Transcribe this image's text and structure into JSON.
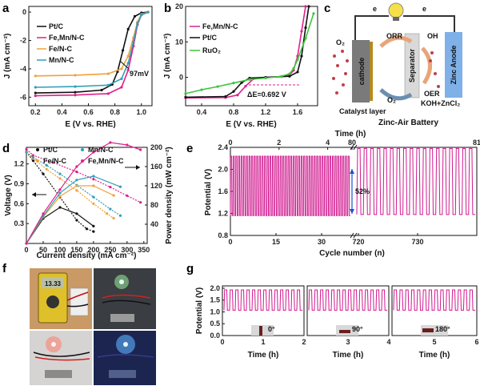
{
  "panel_labels": [
    "a",
    "b",
    "c",
    "d",
    "e",
    "f",
    "g"
  ],
  "colors": {
    "pt_c": "#111111",
    "fe_mn_n_c": "#e0218a",
    "fe_n_c": "#f0a23a",
    "mn_n_c": "#2f9fb8",
    "ruo2": "#3ec43e",
    "battery_cycle": "#d0198f",
    "arrow_blue": "#1a4fd6"
  },
  "chart_data": [
    {
      "id": "a",
      "type": "line",
      "xlabel": "E (V vs. RHE)",
      "ylabel": "J (mA cm⁻²)",
      "xlim": [
        0.15,
        1.08
      ],
      "ylim": [
        -6.6,
        0.4
      ],
      "xticks": [
        0.2,
        0.4,
        0.6,
        0.8,
        1.0
      ],
      "yticks": [
        0,
        -2,
        -4,
        -6
      ],
      "annotation": "97mV",
      "series": [
        {
          "name": "Pt/C",
          "x": [
            0.2,
            0.5,
            0.7,
            0.78,
            0.82,
            0.86,
            0.9,
            0.95,
            1.0,
            1.05
          ],
          "y": [
            -5.7,
            -5.65,
            -5.5,
            -5.1,
            -4.2,
            -2.7,
            -1.2,
            -0.3,
            -0.05,
            0.0
          ]
        },
        {
          "name": "Fe,Mn/N-C",
          "x": [
            0.2,
            0.5,
            0.75,
            0.85,
            0.9,
            0.94,
            0.97,
            1.0,
            1.05
          ],
          "y": [
            -5.9,
            -5.85,
            -5.75,
            -5.3,
            -4.1,
            -2.4,
            -0.9,
            -0.2,
            0.0
          ]
        },
        {
          "name": "Fe/N-C",
          "x": [
            0.2,
            0.5,
            0.75,
            0.85,
            0.9,
            0.94,
            0.97,
            1.0,
            1.05
          ],
          "y": [
            -4.5,
            -4.45,
            -4.35,
            -4.0,
            -3.1,
            -1.8,
            -0.7,
            -0.15,
            0.0
          ]
        },
        {
          "name": "Mn/N-C",
          "x": [
            0.2,
            0.5,
            0.75,
            0.85,
            0.9,
            0.94,
            0.97,
            1.0,
            1.05
          ],
          "y": [
            -5.3,
            -5.25,
            -5.15,
            -4.7,
            -3.6,
            -2.1,
            -0.8,
            -0.2,
            0.0
          ]
        }
      ]
    },
    {
      "id": "b",
      "type": "line",
      "xlabel": "E (V vs. RHE)",
      "ylabel": "J (mA cm⁻²)",
      "xlim": [
        0.2,
        1.85
      ],
      "ylim": [
        -8,
        20
      ],
      "xticks": [
        0.4,
        0.8,
        1.2,
        1.6
      ],
      "yticks": [
        0,
        10,
        20
      ],
      "annotation": "ΔE=0.692 V",
      "series": [
        {
          "name": "Fe,Mn/N-C",
          "x": [
            0.2,
            0.7,
            0.85,
            0.95,
            1.05,
            1.2,
            1.4,
            1.5,
            1.55,
            1.6,
            1.65,
            1.7
          ],
          "y": [
            -5.8,
            -5.7,
            -5.0,
            -2.5,
            -0.4,
            0.0,
            0.2,
            0.6,
            2.0,
            6.0,
            13.0,
            20.0
          ]
        },
        {
          "name": "Pt/C",
          "x": [
            0.2,
            0.7,
            0.8,
            0.9,
            1.0,
            1.2,
            1.5,
            1.6,
            1.65,
            1.7,
            1.74
          ],
          "y": [
            -5.6,
            -5.4,
            -4.0,
            -1.5,
            -0.2,
            0.0,
            0.3,
            1.5,
            6.0,
            14.0,
            20.0
          ]
        },
        {
          "name": "RuO₂",
          "x": [
            0.2,
            0.4,
            0.6,
            0.8,
            1.0,
            1.2,
            1.4,
            1.5,
            1.55,
            1.6,
            1.7,
            1.8
          ],
          "y": [
            -4.6,
            -3.5,
            -2.6,
            -1.6,
            -0.6,
            -0.2,
            0.3,
            1.0,
            2.5,
            5.0,
            11.0,
            18.0
          ]
        }
      ]
    },
    {
      "id": "d",
      "type": "line",
      "xlabel": "Current density (mA cm⁻²)",
      "ylabel": "Voltage (V)",
      "ylabel2": "Power density (mW cm⁻²)",
      "xlim": [
        0,
        360
      ],
      "ylim": [
        0.0,
        1.45
      ],
      "y2lim": [
        0,
        200
      ],
      "xticks": [
        0,
        50,
        100,
        150,
        200,
        250,
        300,
        350
      ],
      "yticks": [
        0.3,
        0.6,
        0.9,
        1.2
      ],
      "y2ticks": [
        40,
        80,
        120,
        160,
        200
      ],
      "series": [
        {
          "name": "Pt/C",
          "axis": "voltage",
          "x": [
            0,
            20,
            50,
            100,
            150,
            180,
            200
          ],
          "y": [
            1.38,
            1.25,
            1.05,
            0.7,
            0.35,
            0.22,
            0.18
          ]
        },
        {
          "name": "Fe/N-C",
          "axis": "voltage",
          "x": [
            0,
            20,
            60,
            100,
            150,
            200,
            240,
            260
          ],
          "y": [
            1.38,
            1.28,
            1.12,
            0.98,
            0.8,
            0.6,
            0.45,
            0.38
          ]
        },
        {
          "name": "Mn/N-C",
          "axis": "voltage",
          "x": [
            0,
            20,
            60,
            100,
            150,
            200,
            250,
            280
          ],
          "y": [
            1.38,
            1.3,
            1.18,
            1.05,
            0.88,
            0.7,
            0.52,
            0.42
          ]
        },
        {
          "name": "Fe,Mn/N-C",
          "axis": "voltage",
          "x": [
            0,
            20,
            80,
            150,
            200,
            250,
            300,
            340
          ],
          "y": [
            1.42,
            1.33,
            1.22,
            1.08,
            0.97,
            0.85,
            0.72,
            0.62
          ]
        },
        {
          "name": "Pt/C",
          "axis": "power",
          "x": [
            0,
            50,
            100,
            150,
            200
          ],
          "y": [
            0,
            52,
            75,
            62,
            36
          ]
        },
        {
          "name": "Fe/N-C",
          "axis": "power",
          "x": [
            0,
            50,
            100,
            150,
            200,
            260
          ],
          "y": [
            0,
            55,
            98,
            120,
            120,
            100
          ]
        },
        {
          "name": "Mn/N-C",
          "axis": "power",
          "x": [
            0,
            50,
            100,
            150,
            200,
            280
          ],
          "y": [
            0,
            57,
            105,
            132,
            140,
            118
          ]
        },
        {
          "name": "Fe,Mn/N-C",
          "axis": "power",
          "x": [
            0,
            50,
            100,
            150,
            200,
            250,
            300,
            340
          ],
          "y": [
            0,
            62,
            112,
            160,
            190,
            210,
            205,
            195
          ]
        }
      ]
    },
    {
      "id": "e",
      "type": "line",
      "xlabel": "Cycle number (n)",
      "ylabel": "Potential (V)",
      "top_xlabel": "Time (h)",
      "ylim": [
        0.8,
        2.4
      ],
      "yticks": [
        0.8,
        1.2,
        1.6,
        2.0,
        2.4
      ],
      "bottom_ticks_left": [
        0,
        15,
        30
      ],
      "bottom_ticks_right": [
        720,
        730
      ],
      "top_ticks_left": [
        0,
        2,
        4,
        80
      ],
      "top_ticks_right": [
        81
      ],
      "charge_voltage": 2.24,
      "discharge_voltage": 1.16,
      "late_charge_voltage": 2.38,
      "late_discharge_voltage": 1.18,
      "annotation": "52%"
    },
    {
      "id": "g",
      "type": "line",
      "xlabel": "Time (h)",
      "ylabel": "Potential (V)",
      "ylim": [
        0.0,
        2.1
      ],
      "yticks": [
        0.0,
        0.5,
        1.0,
        1.5,
        2.0
      ],
      "subplots": [
        {
          "xlim": [
            0,
            2
          ],
          "xticks": [
            0,
            1,
            2
          ],
          "angle": "0°"
        },
        {
          "xlim": [
            2,
            4
          ],
          "xticks": [
            3,
            4
          ],
          "angle": "90°"
        },
        {
          "xlim": [
            4,
            6
          ],
          "xticks": [
            5,
            6
          ],
          "angle": "180°"
        }
      ],
      "charge_voltage": 1.93,
      "discharge_voltage": 1.07
    }
  ],
  "legend_a": [
    "Pt/C",
    "Fe,Mn/N-C",
    "Fe/N-C",
    "Mn/N-C"
  ],
  "legend_b": [
    "Fe,Mn/N-C",
    "Pt/C",
    "RuO₂"
  ],
  "legend_d": [
    "Pt/C",
    "Mn/N-C",
    "Fe/N-C",
    "Fe,Mn/N-C"
  ],
  "schematic_c": {
    "e_left": "e",
    "e_right": "e",
    "o2_top": "O₂",
    "orr": "ORR",
    "oh": "OH",
    "oer": "OER",
    "o2_bottom": "O₂",
    "cathode": "cathode",
    "separator": "Separator",
    "zinc_anode": "Zinc Anode",
    "catalyst_layer": "Catalyst layer",
    "electrolyte": "KOH+ZnCl₂",
    "caption": "Zinc-Air Battery"
  },
  "photos_f": {
    "meter_reading": "13.33"
  }
}
